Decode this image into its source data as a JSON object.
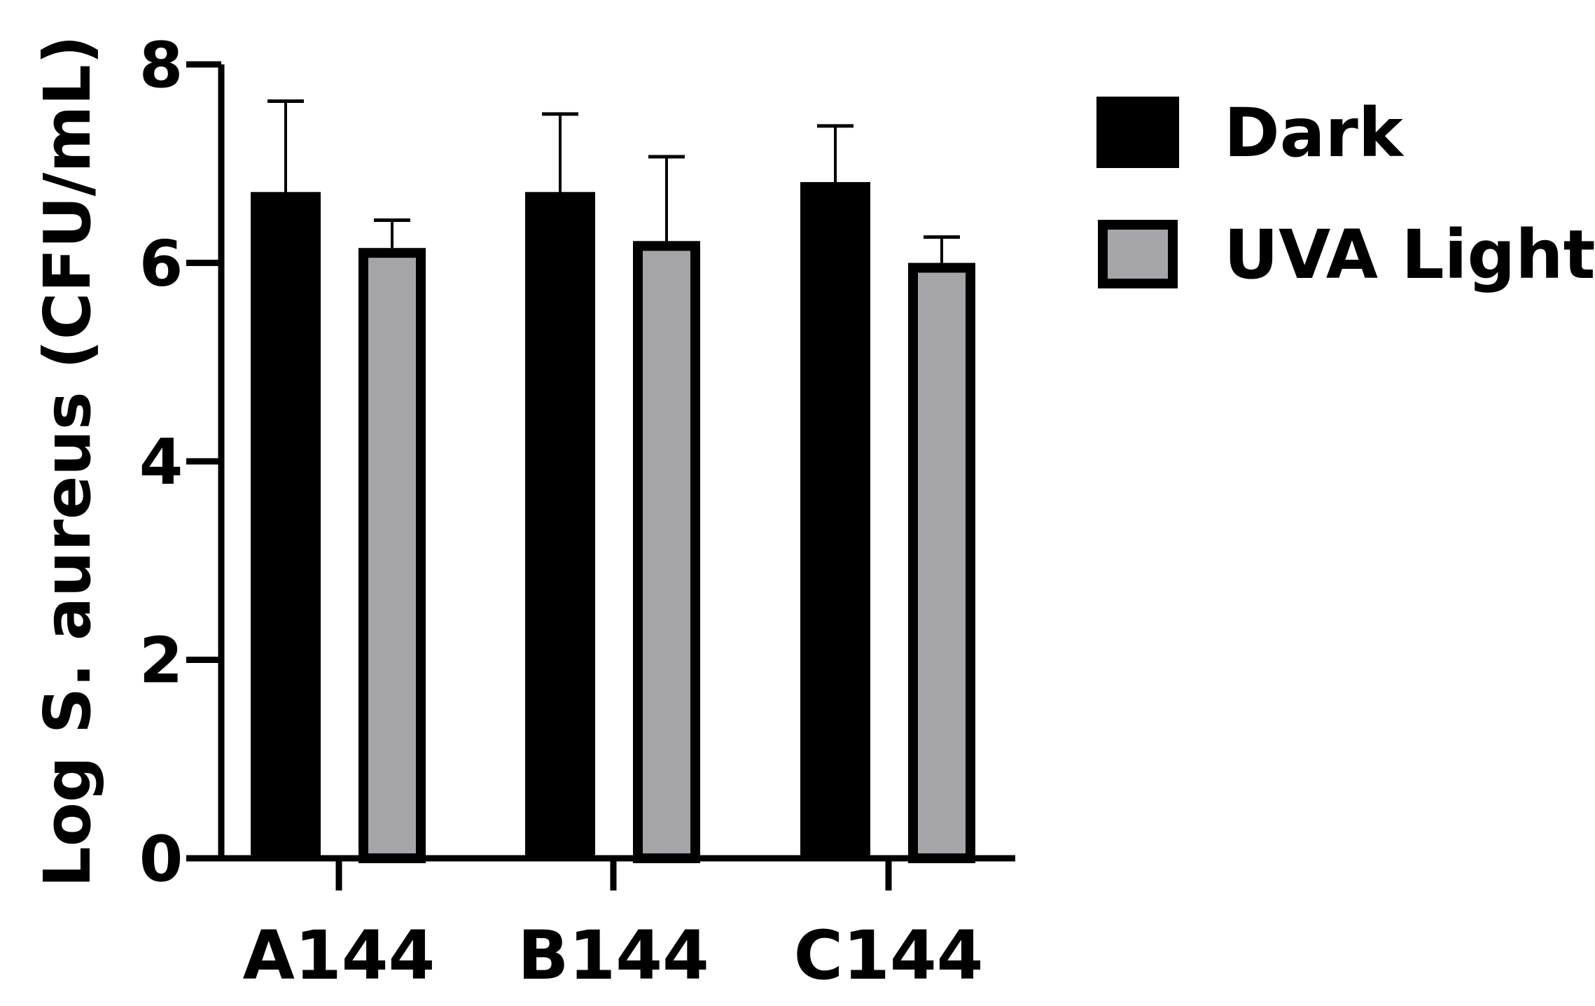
{
  "chart_data": {
    "type": "bar",
    "title": "",
    "xlabel": "",
    "ylabel": "Log S. aureus (CFU/mL)",
    "ylim": [
      0,
      8
    ],
    "yticks": [
      "0",
      "2",
      "4",
      "6",
      "8"
    ],
    "categories": [
      "A144",
      "B144",
      "C144"
    ],
    "series": [
      {
        "name": "Dark",
        "values": [
          6.7,
          6.7,
          6.8
        ],
        "errors": [
          0.93,
          0.8,
          0.58
        ],
        "color": "#000000"
      },
      {
        "name": "UVA Light",
        "values": [
          6.15,
          6.22,
          6.0
        ],
        "errors": [
          0.28,
          0.85,
          0.26
        ],
        "color": "#a5a4a8"
      }
    ],
    "grid": false,
    "legend": "top-right"
  }
}
